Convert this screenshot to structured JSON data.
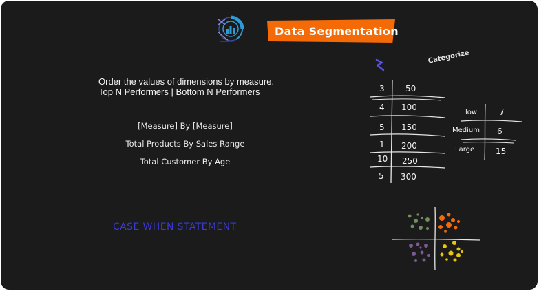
{
  "header": {
    "title": "Data Segmentation"
  },
  "intro": {
    "line1": "Order the values of dimensions by measure.",
    "line2": "Top N Performers | Bottom N Performers"
  },
  "examples": {
    "pattern": "[Measure] By [Measure]",
    "ex1": "Total Products By Sales Range",
    "ex2": "Total Customer By Age"
  },
  "case_label": "CASE WHEN STATEMENT",
  "categorize_label": "Categorize",
  "left_table": {
    "rows": [
      {
        "count": "3",
        "value": "50"
      },
      {
        "count": "4",
        "value": "100"
      },
      {
        "count": "5",
        "value": "150"
      },
      {
        "count": "1",
        "value": "200"
      },
      {
        "count": "10",
        "value": "250"
      },
      {
        "count": "5",
        "value": "300"
      }
    ]
  },
  "right_table": {
    "rows": [
      {
        "category": "low",
        "count": "7"
      },
      {
        "category": "Medium",
        "count": "6"
      },
      {
        "category": "Large",
        "count": "15"
      }
    ]
  },
  "colors": {
    "background": "#1b1b1b",
    "title_bar": "#f36a07",
    "case_text": "#3a3ad8",
    "logo_blue": "#2e9bd6",
    "sigma": "#5b52d8",
    "cluster_green": "#6f8f5e",
    "cluster_orange": "#f26a0c",
    "cluster_purple": "#7a5a92",
    "cluster_yellow": "#e8c60b"
  },
  "icons": [
    "segmentation-logo-icon",
    "sigma-icon",
    "cluster-scatter-icon"
  ]
}
